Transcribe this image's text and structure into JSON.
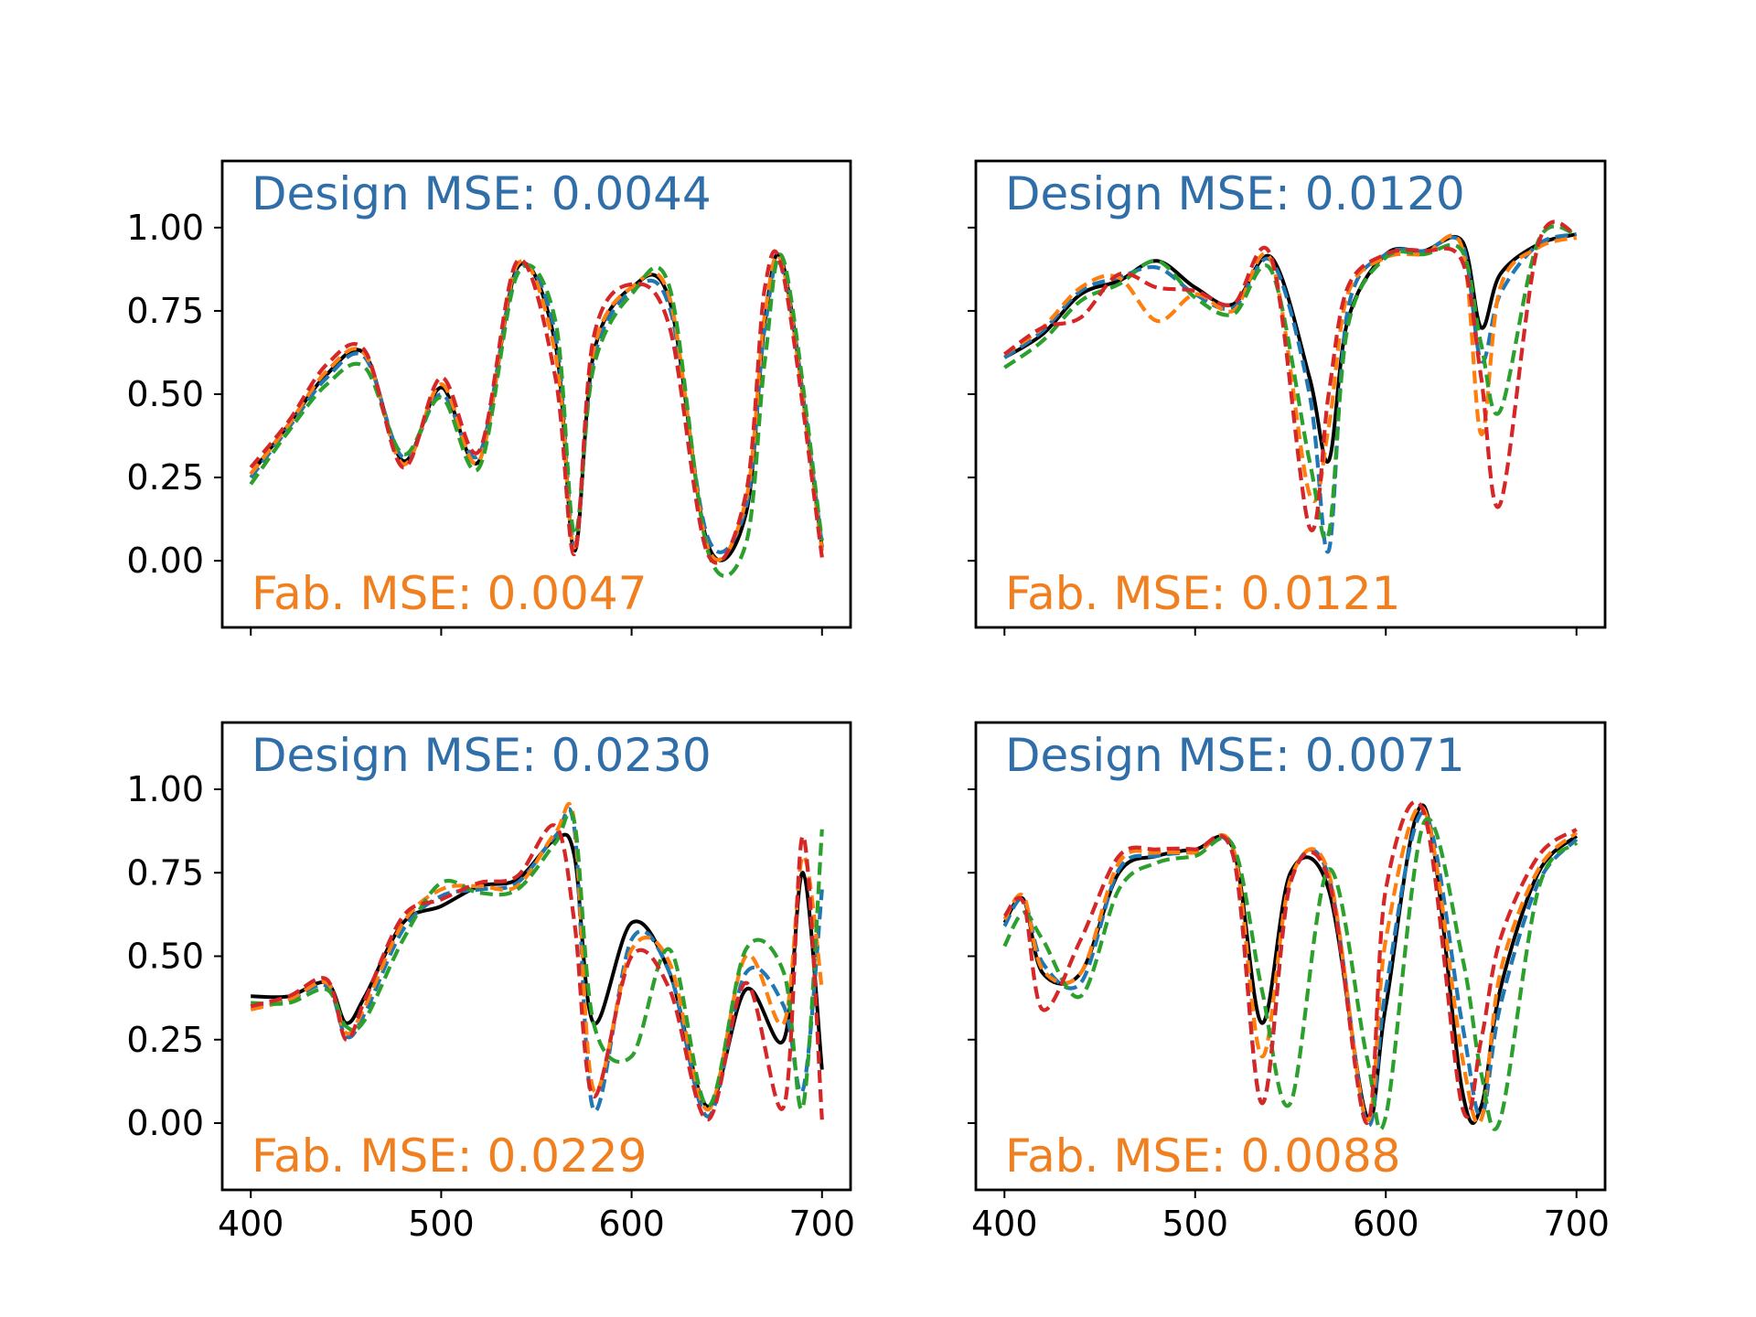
{
  "colors": {
    "measured": "#000000",
    "series_blue": "#1f77b4",
    "series_orange": "#ff7f0e",
    "series_green": "#2ca02c",
    "series_red": "#d62728",
    "design_text": "#2f6ea8",
    "fab_text": "#f07f1f"
  },
  "chart_data": [
    {
      "type": "line",
      "panel": "top-left",
      "annotations": {
        "design": "Design MSE: 0.0044",
        "fab": "Fab. MSE: 0.0047"
      },
      "xlim": [
        385,
        715
      ],
      "ylim": [
        -0.2,
        1.2
      ],
      "xticks": [
        "400",
        "500",
        "600",
        "700"
      ],
      "xtick_labels_visible": false,
      "yticks": [
        "0.00",
        "0.25",
        "0.50",
        "0.75",
        "1.00"
      ],
      "ytick_labels_visible": true,
      "x_sample": [
        400,
        420,
        440,
        460,
        480,
        500,
        520,
        540,
        560,
        570,
        580,
        600,
        620,
        640,
        660,
        670,
        680,
        700
      ],
      "series": [
        {
          "style": "solid",
          "color": "#000000",
          "y": [
            0.26,
            0.41,
            0.56,
            0.62,
            0.3,
            0.52,
            0.3,
            0.88,
            0.65,
            0.03,
            0.62,
            0.82,
            0.78,
            0.05,
            0.14,
            0.72,
            0.88,
            0.04
          ]
        },
        {
          "style": "dashed",
          "color": "#1f77b4",
          "y": [
            0.25,
            0.4,
            0.55,
            0.61,
            0.31,
            0.5,
            0.32,
            0.87,
            0.68,
            0.05,
            0.6,
            0.81,
            0.76,
            0.07,
            0.16,
            0.7,
            0.86,
            0.05
          ]
        },
        {
          "style": "dashed",
          "color": "#ff7f0e",
          "y": [
            0.26,
            0.41,
            0.57,
            0.62,
            0.29,
            0.53,
            0.3,
            0.89,
            0.62,
            0.04,
            0.63,
            0.82,
            0.79,
            0.04,
            0.18,
            0.74,
            0.87,
            0.03
          ]
        },
        {
          "style": "dashed",
          "color": "#2ca02c",
          "y": [
            0.23,
            0.39,
            0.53,
            0.58,
            0.32,
            0.49,
            0.28,
            0.86,
            0.72,
            0.08,
            0.58,
            0.8,
            0.82,
            0.03,
            0.05,
            0.6,
            0.9,
            0.06
          ]
        },
        {
          "style": "dashed",
          "color": "#d62728",
          "y": [
            0.28,
            0.42,
            0.59,
            0.63,
            0.28,
            0.55,
            0.33,
            0.9,
            0.55,
            0.02,
            0.67,
            0.83,
            0.7,
            0.02,
            0.2,
            0.82,
            0.85,
            0.01
          ]
        }
      ]
    },
    {
      "type": "line",
      "panel": "top-right",
      "annotations": {
        "design": "Design MSE: 0.0120",
        "fab": "Fab. MSE: 0.0121"
      },
      "xlim": [
        385,
        715
      ],
      "ylim": [
        -0.2,
        1.2
      ],
      "xticks": [
        "400",
        "500",
        "600",
        "700"
      ],
      "xtick_labels_visible": false,
      "yticks": [
        "0.00",
        "0.25",
        "0.50",
        "0.75",
        "1.00"
      ],
      "ytick_labels_visible": false,
      "x_sample": [
        400,
        420,
        440,
        460,
        480,
        500,
        520,
        540,
        560,
        570,
        580,
        600,
        620,
        640,
        650,
        660,
        680,
        700
      ],
      "series": [
        {
          "style": "solid",
          "color": "#000000",
          "y": [
            0.61,
            0.68,
            0.8,
            0.84,
            0.9,
            0.82,
            0.77,
            0.91,
            0.55,
            0.3,
            0.72,
            0.92,
            0.93,
            0.96,
            0.7,
            0.86,
            0.95,
            0.98
          ]
        },
        {
          "style": "dashed",
          "color": "#1f77b4",
          "y": [
            0.61,
            0.69,
            0.81,
            0.85,
            0.88,
            0.8,
            0.76,
            0.9,
            0.5,
            0.03,
            0.75,
            0.92,
            0.93,
            0.95,
            0.6,
            0.8,
            0.95,
            0.98
          ]
        },
        {
          "style": "dashed",
          "color": "#ff7f0e",
          "y": [
            0.62,
            0.7,
            0.82,
            0.85,
            0.72,
            0.8,
            0.75,
            0.9,
            0.2,
            0.4,
            0.8,
            0.91,
            0.92,
            0.94,
            0.38,
            0.82,
            0.94,
            0.97
          ]
        },
        {
          "style": "dashed",
          "color": "#2ca02c",
          "y": [
            0.58,
            0.66,
            0.78,
            0.83,
            0.9,
            0.79,
            0.74,
            0.87,
            0.3,
            0.08,
            0.7,
            0.91,
            0.92,
            0.93,
            0.65,
            0.45,
            0.96,
            0.98
          ]
        },
        {
          "style": "dashed",
          "color": "#d62728",
          "y": [
            0.62,
            0.7,
            0.73,
            0.86,
            0.82,
            0.81,
            0.77,
            0.91,
            0.1,
            0.5,
            0.82,
            0.92,
            0.93,
            0.9,
            0.55,
            0.17,
            0.95,
            0.98
          ]
        }
      ]
    },
    {
      "type": "line",
      "panel": "bottom-left",
      "annotations": {
        "design": "Design MSE: 0.0230",
        "fab": "Fab. MSE: 0.0229"
      },
      "xlim": [
        385,
        715
      ],
      "ylim": [
        -0.2,
        1.2
      ],
      "xticks": [
        "400",
        "500",
        "600",
        "700"
      ],
      "xtick_labels_visible": true,
      "yticks": [
        "0.00",
        "0.25",
        "0.50",
        "0.75",
        "1.00"
      ],
      "ytick_labels_visible": true,
      "x_sample": [
        400,
        420,
        440,
        450,
        460,
        480,
        500,
        520,
        540,
        560,
        570,
        580,
        600,
        620,
        640,
        660,
        680,
        690,
        700
      ],
      "series": [
        {
          "style": "solid",
          "color": "#000000",
          "y": [
            0.38,
            0.38,
            0.42,
            0.3,
            0.38,
            0.6,
            0.65,
            0.71,
            0.73,
            0.85,
            0.8,
            0.3,
            0.6,
            0.45,
            0.05,
            0.4,
            0.25,
            0.75,
            0.16
          ]
        },
        {
          "style": "dashed",
          "color": "#1f77b4",
          "y": [
            0.35,
            0.37,
            0.41,
            0.26,
            0.33,
            0.58,
            0.68,
            0.7,
            0.72,
            0.86,
            0.88,
            0.04,
            0.55,
            0.45,
            0.02,
            0.45,
            0.35,
            0.1,
            0.7
          ]
        },
        {
          "style": "dashed",
          "color": "#ff7f0e",
          "y": [
            0.34,
            0.37,
            0.42,
            0.27,
            0.35,
            0.6,
            0.7,
            0.71,
            0.71,
            0.87,
            0.9,
            0.1,
            0.52,
            0.48,
            0.04,
            0.5,
            0.3,
            0.8,
            0.4
          ]
        },
        {
          "style": "dashed",
          "color": "#2ca02c",
          "y": [
            0.36,
            0.36,
            0.4,
            0.29,
            0.31,
            0.55,
            0.72,
            0.69,
            0.7,
            0.84,
            0.9,
            0.3,
            0.2,
            0.52,
            0.05,
            0.52,
            0.45,
            0.05,
            0.88
          ]
        },
        {
          "style": "dashed",
          "color": "#d62728",
          "y": [
            0.35,
            0.38,
            0.43,
            0.25,
            0.37,
            0.62,
            0.67,
            0.72,
            0.74,
            0.89,
            0.6,
            0.08,
            0.5,
            0.4,
            0.01,
            0.42,
            0.05,
            0.86,
            0.01
          ]
        }
      ]
    },
    {
      "type": "line",
      "panel": "bottom-right",
      "annotations": {
        "design": "Design MSE: 0.0071",
        "fab": "Fab. MSE: 0.0088"
      },
      "xlim": [
        385,
        715
      ],
      "ylim": [
        -0.2,
        1.2
      ],
      "xticks": [
        "400",
        "500",
        "600",
        "700"
      ],
      "xtick_labels_visible": true,
      "yticks": [
        "0.00",
        "0.25",
        "0.50",
        "0.75",
        "1.00"
      ],
      "ytick_labels_visible": false,
      "x_sample": [
        400,
        410,
        420,
        440,
        460,
        480,
        500,
        520,
        535,
        550,
        570,
        590,
        600,
        620,
        640,
        650,
        660,
        680,
        700
      ],
      "series": [
        {
          "style": "solid",
          "color": "#000000",
          "y": [
            0.6,
            0.67,
            0.45,
            0.45,
            0.75,
            0.8,
            0.82,
            0.82,
            0.3,
            0.75,
            0.7,
            0.02,
            0.35,
            0.95,
            0.1,
            0.05,
            0.4,
            0.75,
            0.86
          ]
        },
        {
          "style": "dashed",
          "color": "#1f77b4",
          "y": [
            0.59,
            0.67,
            0.48,
            0.42,
            0.76,
            0.8,
            0.81,
            0.8,
            0.06,
            0.72,
            0.74,
            0.0,
            0.4,
            0.93,
            0.3,
            0.02,
            0.35,
            0.72,
            0.85
          ]
        },
        {
          "style": "dashed",
          "color": "#ff7f0e",
          "y": [
            0.61,
            0.68,
            0.46,
            0.45,
            0.78,
            0.81,
            0.81,
            0.82,
            0.2,
            0.73,
            0.75,
            0.01,
            0.55,
            0.94,
            0.2,
            0.01,
            0.45,
            0.76,
            0.87
          ]
        },
        {
          "style": "dashed",
          "color": "#2ca02c",
          "y": [
            0.53,
            0.63,
            0.55,
            0.38,
            0.7,
            0.78,
            0.8,
            0.83,
            0.4,
            0.06,
            0.76,
            0.2,
            0.02,
            0.9,
            0.5,
            0.15,
            0.01,
            0.7,
            0.84
          ]
        },
        {
          "style": "dashed",
          "color": "#d62728",
          "y": [
            0.62,
            0.66,
            0.34,
            0.55,
            0.8,
            0.82,
            0.82,
            0.8,
            0.06,
            0.72,
            0.73,
            0.0,
            0.7,
            0.93,
            0.05,
            0.25,
            0.55,
            0.8,
            0.88
          ]
        }
      ]
    }
  ]
}
